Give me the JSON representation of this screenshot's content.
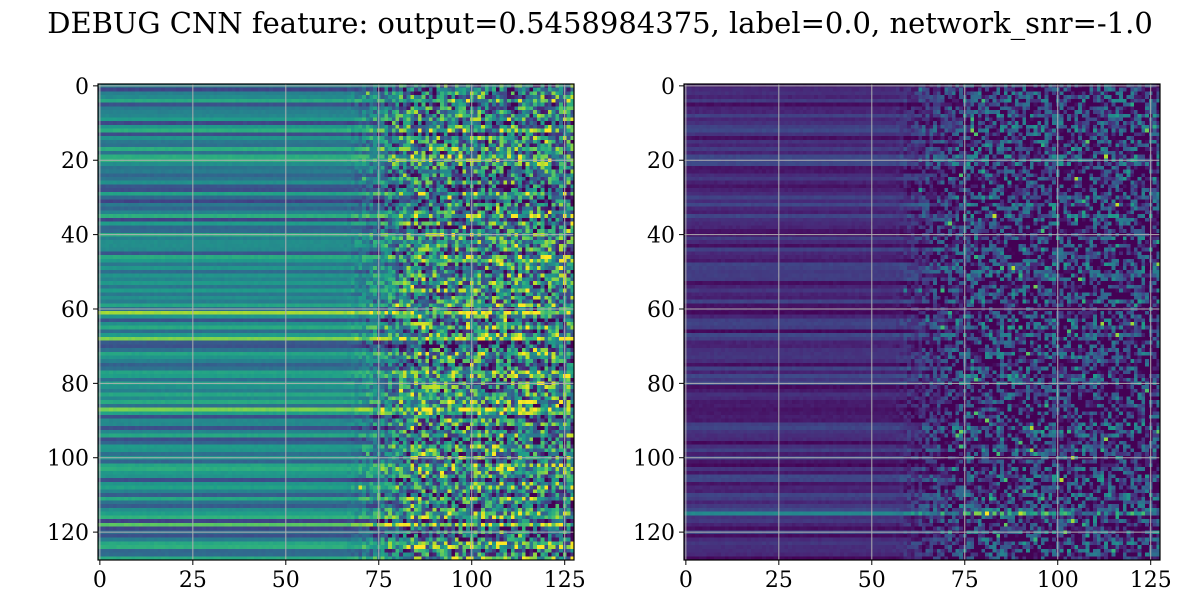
{
  "figure": {
    "title": "DEBUG CNN feature: output=0.5458984375, label=0.0, network_snr=-1.0"
  },
  "chart_data": [
    {
      "type": "heatmap",
      "colormap": "viridis",
      "rows": 128,
      "cols": 128,
      "xlim": [
        0,
        127
      ],
      "ylim": [
        127,
        0
      ],
      "xticks": [
        0,
        25,
        50,
        75,
        100,
        125
      ],
      "yticks": [
        0,
        20,
        40,
        60,
        80,
        100,
        120
      ],
      "grid": true,
      "pattern": {
        "left_baseline": 0.42,
        "left_row_variation": 0.22,
        "noise_start_col": 75,
        "noise_strength": 0.45,
        "notable_bright_rows": [
          0,
          55,
          61,
          65,
          68,
          87,
          100,
          103,
          118
        ]
      }
    },
    {
      "type": "heatmap",
      "colormap": "viridis",
      "rows": 128,
      "cols": 128,
      "xlim": [
        0,
        127
      ],
      "ylim": [
        127,
        0
      ],
      "xticks": [
        0,
        25,
        50,
        75,
        100,
        125
      ],
      "yticks": [
        0,
        20,
        40,
        60,
        80,
        100,
        120
      ],
      "grid": true,
      "pattern": {
        "left_baseline": 0.12,
        "left_row_variation": 0.1,
        "noise_start_col": 65,
        "noise_strength": 0.35,
        "notable_bright_rows": [
          115
        ]
      }
    }
  ]
}
